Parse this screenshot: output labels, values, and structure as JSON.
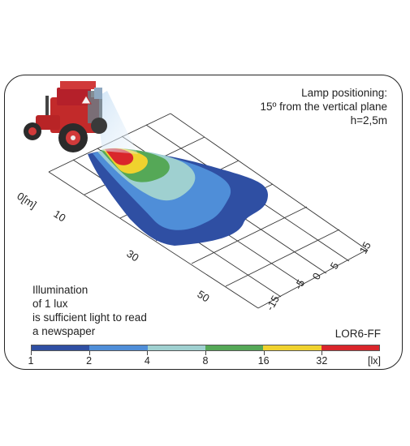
{
  "lamp_info": {
    "line1": "Lamp positioning:",
    "line2": "15º from the vertical plane",
    "line3": "h=2,5m"
  },
  "illumination_note": {
    "line1": "Illumination",
    "line2": "of 1 lux",
    "line3": "is sufficient light to read",
    "line4": "a newspaper"
  },
  "model": "LOR6-FF",
  "distance_axis": {
    "origin": "0[m]",
    "labels": [
      "10",
      "30",
      "50"
    ]
  },
  "lateral_axis": {
    "labels": [
      "15",
      "5",
      "0",
      "-5",
      "-15"
    ]
  },
  "scale": {
    "unit": "[lx]",
    "ticks": [
      "1",
      "2",
      "4",
      "8",
      "16",
      "32"
    ],
    "colors": [
      "#2f4fa3",
      "#4f8ed8",
      "#9fd0d0",
      "#55a857",
      "#f0d22e",
      "#d9262b"
    ]
  },
  "icons": [
    "tractor-icon"
  ]
}
